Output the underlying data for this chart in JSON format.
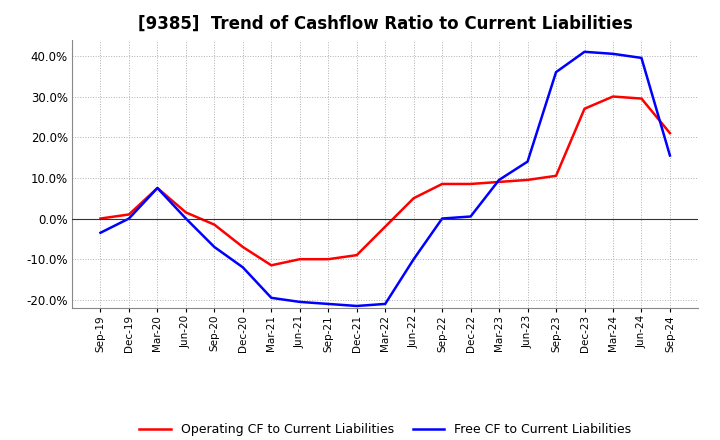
{
  "title": "[9385]  Trend of Cashflow Ratio to Current Liabilities",
  "x_labels": [
    "Sep-19",
    "Dec-19",
    "Mar-20",
    "Jun-20",
    "Sep-20",
    "Dec-20",
    "Mar-21",
    "Jun-21",
    "Sep-21",
    "Dec-21",
    "Mar-22",
    "Jun-22",
    "Sep-22",
    "Dec-22",
    "Mar-23",
    "Jun-23",
    "Sep-23",
    "Dec-23",
    "Mar-24",
    "Jun-24",
    "Sep-24"
  ],
  "operating_cf": [
    0.0,
    1.0,
    7.5,
    1.5,
    -1.5,
    -7.0,
    -11.5,
    -10.0,
    -10.0,
    -9.0,
    -2.0,
    5.0,
    8.5,
    8.5,
    9.0,
    9.5,
    10.5,
    27.0,
    30.0,
    29.5,
    21.0
  ],
  "free_cf": [
    -3.5,
    0.0,
    7.5,
    0.0,
    -7.0,
    -12.0,
    -19.5,
    -20.5,
    -21.0,
    -21.5,
    -21.0,
    -10.0,
    0.0,
    0.5,
    9.5,
    14.0,
    36.0,
    41.0,
    40.5,
    39.5,
    15.5
  ],
  "operating_color": "#ff0000",
  "free_color": "#0000ff",
  "ylim": [
    -22,
    44
  ],
  "yticks": [
    -20,
    -10,
    0,
    10,
    20,
    30,
    40
  ],
  "background_color": "#ffffff",
  "grid_color": "#b0b0b0",
  "legend_op": "Operating CF to Current Liabilities",
  "legend_free": "Free CF to Current Liabilities",
  "title_fontsize": 12,
  "line_width": 1.8
}
